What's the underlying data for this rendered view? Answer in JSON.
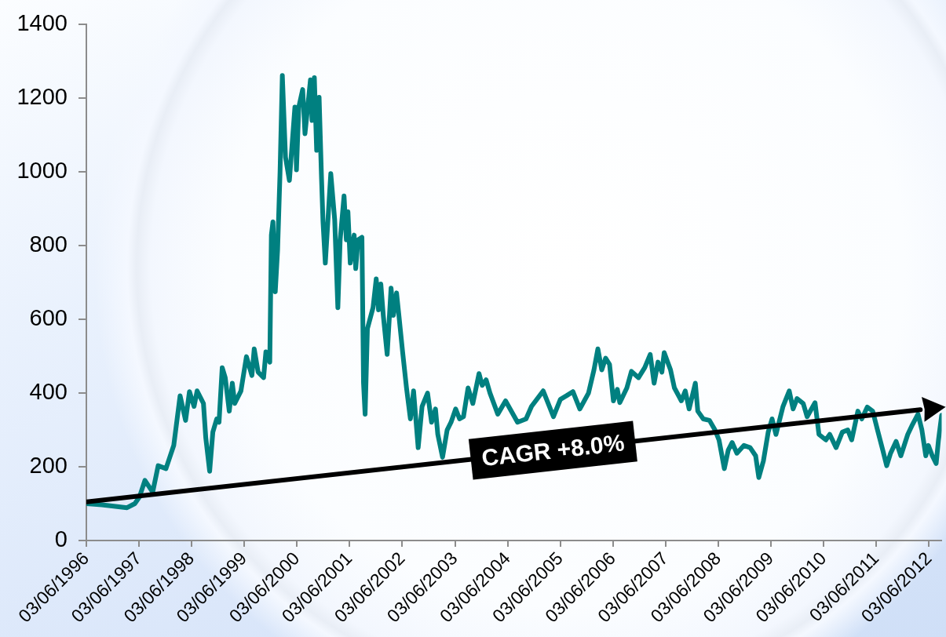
{
  "chart_data": {
    "type": "line",
    "x": [
      "1996-06-03",
      "1996-09-19",
      "1996-12-10",
      "1997-03-12",
      "1997-05-05",
      "1997-06-06",
      "1997-07-14",
      "1997-09-06",
      "1997-10-14",
      "1997-12-07",
      "1998-01-30",
      "1998-03-15",
      "1998-04-22",
      "1998-05-19",
      "1998-06-20",
      "1998-07-11",
      "1998-08-24",
      "1998-09-09",
      "1998-10-06",
      "1998-10-28",
      "1998-11-24",
      "1998-12-10",
      "1999-01-01",
      "1999-01-22",
      "1999-02-19",
      "1999-03-12",
      "1999-03-29",
      "1999-05-11",
      "1999-06-18",
      "1999-07-26",
      "1999-08-11",
      "1999-09-07",
      "1999-10-15",
      "1999-10-31",
      "1999-11-27",
      "1999-12-08",
      "1999-12-19",
      "2000-01-04",
      "2000-01-20",
      "2000-02-06",
      "2000-02-22",
      "2000-03-15",
      "2000-04-11",
      "2000-05-19",
      "2000-05-30",
      "2000-06-15",
      "2000-07-12",
      "2000-07-28",
      "2000-09-04",
      "2000-09-15",
      "2000-10-01",
      "2000-10-17",
      "2000-11-03",
      "2000-11-19",
      "2000-11-30",
      "2000-12-16",
      "2001-01-23",
      "2001-02-19",
      "2001-03-13",
      "2001-03-29",
      "2001-04-25",
      "2001-05-11",
      "2001-05-22",
      "2001-06-07",
      "2001-07-04",
      "2001-07-15",
      "2001-07-31",
      "2001-08-27",
      "2001-09-07",
      "2001-09-18",
      "2001-10-04",
      "2001-11-12",
      "2001-12-04",
      "2001-12-20",
      "2002-01-05",
      "2002-01-22",
      "2002-02-18",
      "2002-03-17",
      "2002-04-02",
      "2002-04-24",
      "2002-05-10",
      "2002-06-05",
      "2002-07-02",
      "2002-07-29",
      "2002-08-20",
      "2002-09-21",
      "2002-10-18",
      "2002-11-25",
      "2002-12-23",
      "2003-01-19",
      "2003-02-04",
      "2003-03-09",
      "2003-04-10",
      "2003-05-07",
      "2003-06-08",
      "2003-07-05",
      "2003-08-01",
      "2003-09-02",
      "2003-10-05",
      "2003-11-17",
      "2003-12-09",
      "2004-01-05",
      "2004-02-01",
      "2004-03-26",
      "2004-05-19",
      "2004-08-10",
      "2004-10-08",
      "2004-11-15",
      "2005-02-04",
      "2005-04-16",
      "2005-06-03",
      "2005-07-16",
      "2005-08-29",
      "2005-10-16",
      "2005-12-15",
      "2006-01-22",
      "2006-02-18",
      "2006-03-17",
      "2006-04-13",
      "2006-05-10",
      "2006-06-06",
      "2006-07-03",
      "2006-07-20",
      "2006-09-07",
      "2006-10-09",
      "2006-11-27",
      "2007-01-09",
      "2007-02-16",
      "2007-03-15",
      "2007-04-11",
      "2007-05-08",
      "2007-05-24",
      "2007-07-07",
      "2007-08-03",
      "2007-09-20",
      "2007-10-17",
      "2007-11-13",
      "2007-12-26",
      "2008-01-12",
      "2008-02-19",
      "2008-04-02",
      "2008-05-10",
      "2008-06-07",
      "2008-07-14",
      "2008-08-10",
      "2008-09-06",
      "2008-10-09",
      "2008-11-27",
      "2009-01-09",
      "2009-02-16",
      "2009-03-10",
      "2009-04-11",
      "2009-05-14",
      "2009-06-10",
      "2009-07-07",
      "2009-08-25",
      "2009-10-07",
      "2009-11-03",
      "2009-11-30",
      "2010-01-12",
      "2010-02-08",
      "2010-04-04",
      "2010-05-01",
      "2010-06-18",
      "2010-07-15",
      "2010-08-28",
      "2010-10-10",
      "2010-11-17",
      "2010-12-14",
      "2011-01-26",
      "2011-02-22",
      "2011-04-01",
      "2011-05-09",
      "2011-06-11",
      "2011-07-18",
      "2011-08-14",
      "2011-09-10",
      "2011-10-18",
      "2011-11-20",
      "2012-01-07",
      "2012-02-09",
      "2012-03-18",
      "2012-04-14",
      "2012-05-11",
      "2012-05-29",
      "2012-06-25",
      "2012-07-22",
      "2012-08-07",
      "2012-08-29"
    ],
    "series": [
      {
        "color": "#008080",
        "values": [
          100,
          97,
          93,
          89,
          100,
          118,
          163,
          131,
          203,
          195,
          258,
          393,
          326,
          404,
          364,
          406,
          372,
          279,
          188,
          294,
          330,
          321,
          469,
          442,
          351,
          427,
          372,
          406,
          499,
          448,
          520,
          457,
          442,
          512,
          484,
          829,
          865,
          675,
          787,
          998,
          1262,
          1040,
          977,
          1176,
          1006,
          1176,
          1224,
          1104,
          1250,
          1140,
          1256,
          1059,
          1203,
          992,
          865,
          753,
          996,
          871,
          632,
          816,
          935,
          816,
          892,
          753,
          829,
          738,
          816,
          823,
          427,
          343,
          575,
          632,
          710,
          626,
          696,
          611,
          505,
          685,
          611,
          672,
          612,
          512,
          414,
          330,
          406,
          252,
          364,
          400,
          321,
          357,
          288,
          226,
          300,
          321,
          357,
          330,
          336,
          414,
          372,
          453,
          421,
          436,
          400,
          343,
          379,
          321,
          330,
          364,
          406,
          336,
          383,
          393,
          404,
          357,
          400,
          463,
          520,
          463,
          495,
          478,
          379,
          410,
          374,
          414,
          459,
          442,
          469,
          505,
          427,
          484,
          457,
          510,
          463,
          414,
          379,
          406,
          357,
          427,
          351,
          330,
          326,
          300,
          273,
          195,
          245,
          266,
          237,
          258,
          252,
          230,
          171,
          216,
          294,
          330,
          288,
          364,
          406,
          357,
          385,
          372,
          336,
          374,
          288,
          273,
          288,
          252,
          294,
          300,
          273,
          351,
          330,
          362,
          351,
          300,
          245,
          203,
          237,
          269,
          230,
          288,
          315,
          343,
          300,
          230,
          258,
          230,
          209,
          273,
          340
        ]
      },
      {
        "name": "CAGR +8.0%",
        "type": "line",
        "color": "#000000",
        "x": [
          "1996-06-03",
          "2012-04-03"
        ],
        "values": [
          105,
          355
        ]
      }
    ],
    "xlim": [
      "1996-06-03",
      "2012-08-29"
    ],
    "xticks": [
      {
        "value": "1996-06-03",
        "label": "03/06/1996"
      },
      {
        "value": "1997-06-03",
        "label": "03/06/1997"
      },
      {
        "value": "1998-06-03",
        "label": "03/06/1998"
      },
      {
        "value": "1999-06-03",
        "label": "03/06/1999"
      },
      {
        "value": "2000-06-03",
        "label": "03/06/2000"
      },
      {
        "value": "2001-06-03",
        "label": "03/06/2001"
      },
      {
        "value": "2002-06-03",
        "label": "03/06/2002"
      },
      {
        "value": "2003-06-03",
        "label": "03/06/2003"
      },
      {
        "value": "2004-06-03",
        "label": "03/06/2004"
      },
      {
        "value": "2005-06-03",
        "label": "03/06/2005"
      },
      {
        "value": "2006-06-03",
        "label": "03/06/2006"
      },
      {
        "value": "2007-06-03",
        "label": "03/06/2007"
      },
      {
        "value": "2008-06-03",
        "label": "03/06/2008"
      },
      {
        "value": "2009-06-03",
        "label": "03/06/2009"
      },
      {
        "value": "2010-06-03",
        "label": "03/06/2010"
      },
      {
        "value": "2011-06-03",
        "label": "03/06/2011"
      },
      {
        "value": "2012-06-03",
        "label": "03/06/2012"
      }
    ],
    "ylim": [
      0,
      1400
    ],
    "yticks": [
      0,
      200,
      400,
      600,
      800,
      1000,
      1200,
      1400
    ],
    "grid": false,
    "legend": false,
    "marker": "none"
  }
}
